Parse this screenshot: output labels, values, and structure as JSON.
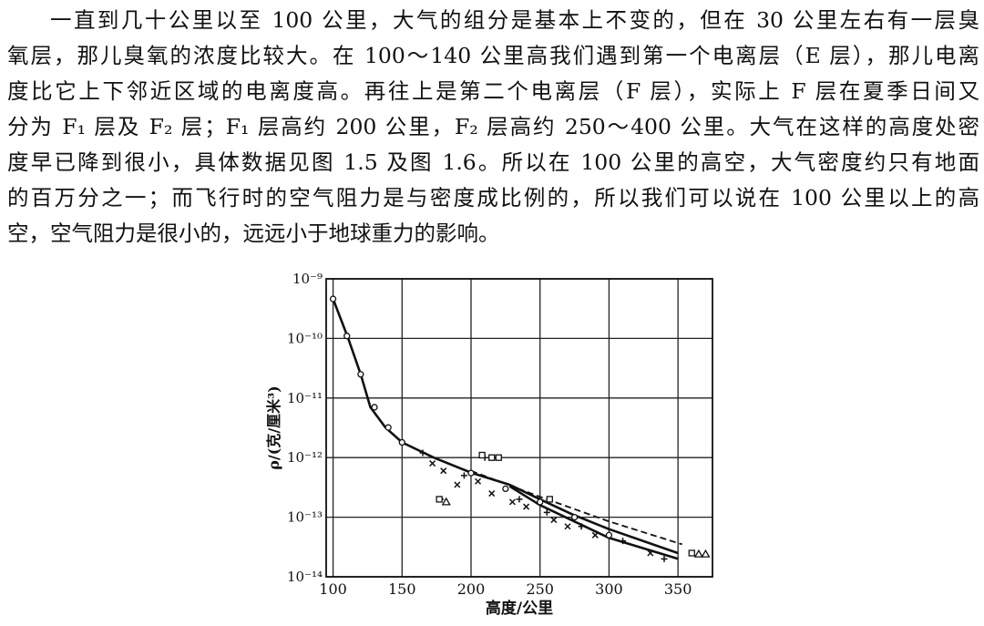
{
  "paragraph": {
    "lines": [
      "一直到几十公里以至 100 公里，大气的组分是基本上不变的，但在 30 公里左右有一层臭",
      "氧层，那儿臭氧的浓度比较大。在 100～140 公里高我们遇到第一个电离层（E 层），那儿电离",
      "度比它上下邻近区域的电离度高。再往上是第二个电离层（F 层），实际上 F 层在夏季日间又",
      "分为 F₁ 层及 F₂ 层；F₁ 层高约 200 公里，F₂ 层高约 250～400 公里。大气在这样的高度处密",
      "度早已降到很小，具体数据见图 1.5 及图 1.6。所以在 100 公里的高空，大气密度约只有地面",
      "的百万分之一；而飞行时的空气阻力是与密度成比例的，所以我们可以说在 100 公里以上的高",
      "空，空气阻力是很小的，远远小于地球重力的影响。"
    ]
  },
  "chart_data": {
    "type": "line",
    "x_label": "高度/公里",
    "y_label": "ρ/(克/厘米³)",
    "xlim": [
      95,
      375
    ],
    "xticks": [
      100,
      150,
      200,
      250,
      300,
      350
    ],
    "ylim": [
      1e-14,
      1e-09
    ],
    "log_y": true,
    "grid": true,
    "yticks": [
      {
        "value": 1e-09,
        "label": "10⁻⁹"
      },
      {
        "value": 1e-10,
        "label": "10⁻¹⁰"
      },
      {
        "value": 1e-11,
        "label": "10⁻¹¹"
      },
      {
        "value": 1e-12,
        "label": "10⁻¹²"
      },
      {
        "value": 1e-13,
        "label": "10⁻¹³"
      },
      {
        "value": 1e-14,
        "label": "10⁻¹⁴"
      }
    ],
    "series": [
      {
        "style": "solid",
        "color": "#111",
        "x": [
          100,
          111,
          120,
          127,
          138,
          150,
          173,
          200,
          228,
          250,
          274,
          300,
          350
        ],
        "values": [
          4.6e-10,
          1e-10,
          2.5e-11,
          7e-12,
          3.2e-12,
          1.8e-12,
          1e-12,
          5.6e-13,
          3.5e-13,
          2e-13,
          1.1e-13,
          6.3e-14,
          2.5e-14
        ]
      },
      {
        "style": "solid",
        "color": "#111",
        "x": [
          228,
          250,
          300,
          350
        ],
        "values": [
          3.3e-13,
          1.6e-13,
          4.5e-14,
          2e-14
        ]
      },
      {
        "style": "dashed",
        "color": "#111",
        "x": [
          200,
          250,
          300,
          353
        ],
        "values": [
          6e-13,
          2.2e-13,
          8.5e-14,
          3.5e-14
        ]
      },
      {
        "style": "marker",
        "marker": "circle",
        "color": "#111",
        "x": [
          100,
          110,
          120,
          130,
          140,
          150,
          200,
          225,
          250,
          275,
          300
        ],
        "values": [
          4.6e-10,
          1.1e-10,
          2.5e-11,
          7e-12,
          3.2e-12,
          1.8e-12,
          5.5e-13,
          3e-13,
          1.8e-13,
          1e-13,
          5e-14
        ]
      },
      {
        "style": "marker",
        "marker": "x",
        "color": "#111",
        "x": [
          172,
          180,
          190,
          205,
          215,
          230,
          240,
          260,
          270,
          290,
          330
        ],
        "values": [
          8e-13,
          6e-13,
          3.5e-13,
          4e-13,
          2.5e-13,
          1.8e-13,
          1.5e-13,
          9e-14,
          7e-14,
          5e-14,
          2.5e-14
        ]
      },
      {
        "style": "marker",
        "marker": "plus",
        "color": "#111",
        "x": [
          165,
          178,
          195,
          210,
          235,
          255,
          280,
          310,
          340
        ],
        "values": [
          1.2e-12,
          2e-13,
          5e-13,
          1e-12,
          2e-13,
          1.2e-13,
          7e-14,
          4e-14,
          2e-14
        ]
      },
      {
        "style": "marker",
        "marker": "square",
        "color": "#111",
        "x": [
          177,
          208,
          215,
          220,
          257,
          360
        ],
        "values": [
          2e-13,
          1.1e-12,
          1e-12,
          1e-12,
          2e-13,
          2.5e-14
        ]
      },
      {
        "style": "marker",
        "marker": "triangle",
        "color": "#111",
        "x": [
          182,
          365,
          370
        ],
        "values": [
          1.8e-13,
          2.4e-14,
          2.4e-14
        ]
      }
    ]
  }
}
